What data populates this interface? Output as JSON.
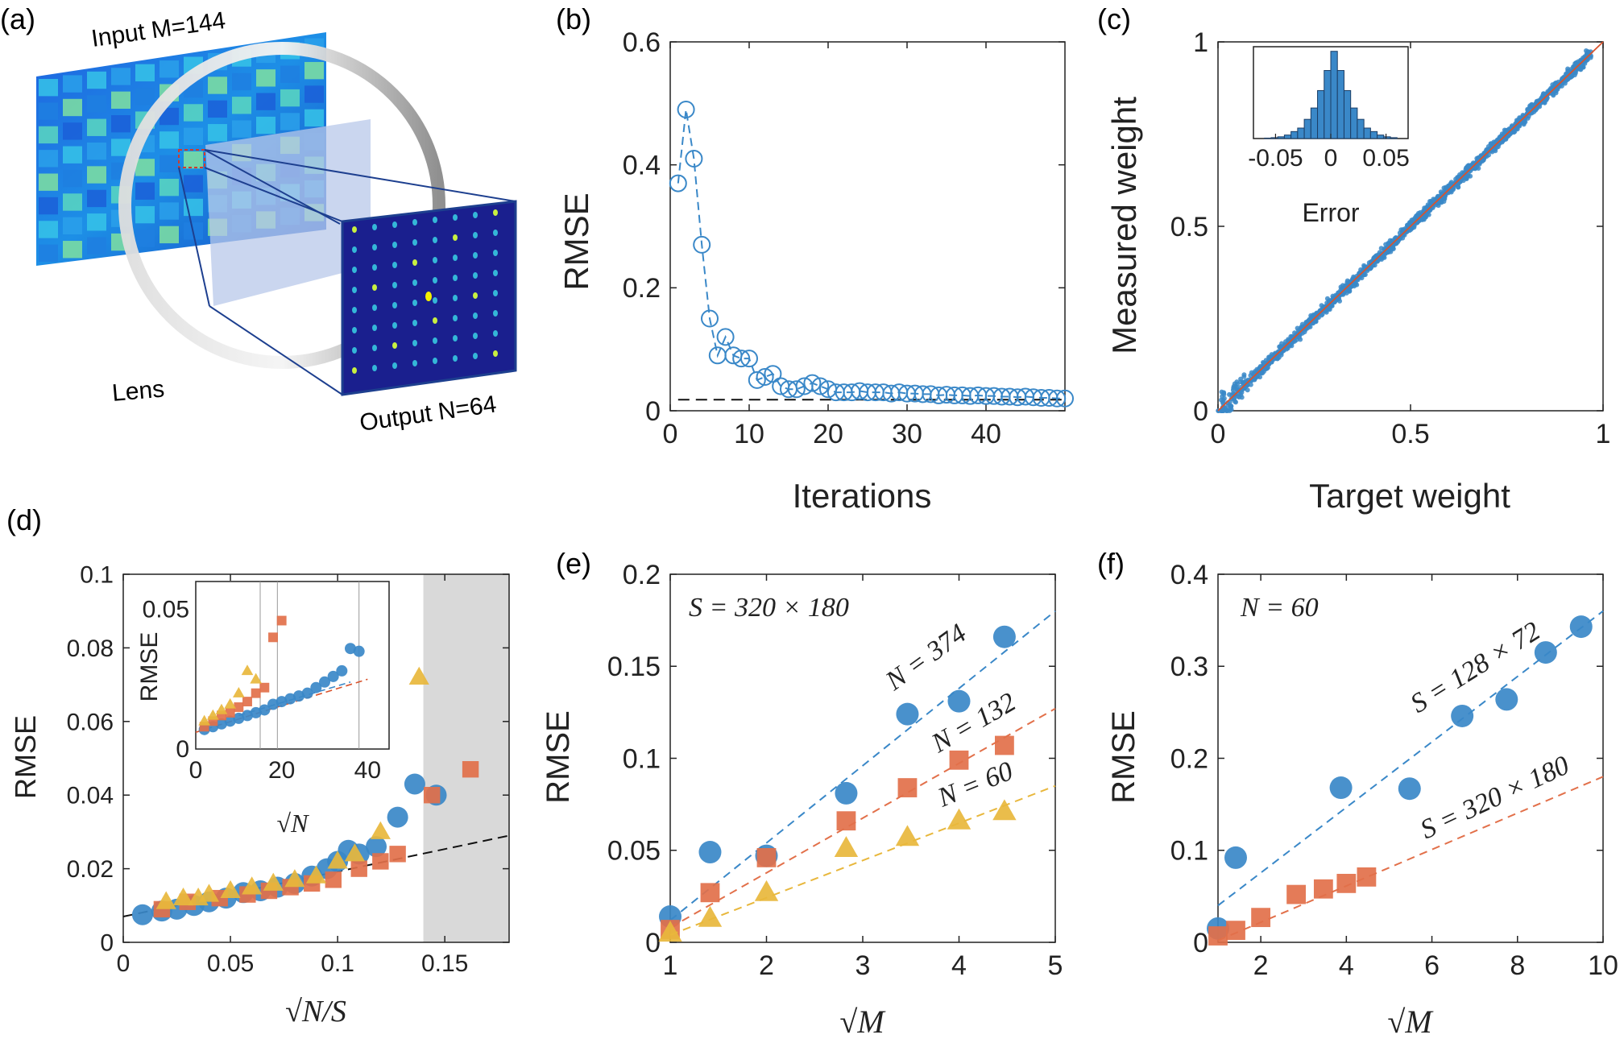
{
  "panel_letters": [
    "(a)",
    "(b)",
    "(c)",
    "(d)",
    "(e)",
    "(f)"
  ],
  "colors": {
    "blue": "#3a88c8",
    "orange": "#e2704a",
    "yellow": "#e8b73c",
    "red_fit": "#d9532c",
    "black": "#111111",
    "grey_band": "#d9d9d9"
  },
  "panel_a": {
    "input_label": "Input M=144",
    "output_label": "Output N=64",
    "lens_label": "Lens"
  },
  "chart_data": [
    {
      "panel": "(b)",
      "type": "scatter",
      "xlabel": "Iterations",
      "ylabel": "RMSE",
      "xlim": [
        0,
        50
      ],
      "ylim": [
        0,
        0.6
      ],
      "xticks": [
        "0",
        "10",
        "20",
        "30",
        "40"
      ],
      "yticks": [
        "0",
        "0.2",
        "0.4",
        "0.6"
      ],
      "baseline": 0.018,
      "series": [
        {
          "marker": "circle-open",
          "line": "dashed",
          "x": [
            1,
            2,
            3,
            4,
            5,
            6,
            7,
            8,
            9,
            10,
            11,
            12,
            13,
            14,
            15,
            16,
            17,
            18,
            19,
            20,
            21,
            22,
            23,
            24,
            25,
            26,
            27,
            28,
            29,
            30,
            31,
            32,
            33,
            34,
            35,
            36,
            37,
            38,
            39,
            40,
            41,
            42,
            43,
            44,
            45,
            46,
            47,
            48,
            49,
            50
          ],
          "y": [
            0.37,
            0.49,
            0.41,
            0.27,
            0.15,
            0.09,
            0.12,
            0.09,
            0.085,
            0.085,
            0.05,
            0.055,
            0.06,
            0.04,
            0.035,
            0.035,
            0.04,
            0.045,
            0.04,
            0.035,
            0.03,
            0.03,
            0.03,
            0.032,
            0.03,
            0.03,
            0.03,
            0.028,
            0.03,
            0.028,
            0.028,
            0.027,
            0.027,
            0.025,
            0.026,
            0.025,
            0.025,
            0.024,
            0.025,
            0.024,
            0.024,
            0.023,
            0.023,
            0.022,
            0.023,
            0.022,
            0.021,
            0.021,
            0.02,
            0.02
          ]
        }
      ]
    },
    {
      "panel": "(c)",
      "type": "scatter",
      "xlabel": "Target weight",
      "ylabel": "Measured weight",
      "xlim": [
        0,
        1
      ],
      "ylim": [
        0,
        1
      ],
      "xticks": [
        "0",
        "0.5",
        "1"
      ],
      "yticks": [
        "0",
        "0.5",
        "1"
      ],
      "description_points": "dense cloud along y = x",
      "inset": {
        "type": "bar",
        "xlabel": "Error",
        "xticks": [
          "-0.05",
          "0",
          "0.05"
        ],
        "bins": [
          -0.06,
          -0.054,
          -0.048,
          -0.042,
          -0.036,
          -0.03,
          -0.024,
          -0.018,
          -0.012,
          -0.006,
          0,
          0.006,
          0.012,
          0.018,
          0.024,
          0.03,
          0.036,
          0.042,
          0.048,
          0.054,
          0.06
        ],
        "values": [
          0.005,
          0.01,
          0.02,
          0.04,
          0.08,
          0.12,
          0.22,
          0.35,
          0.55,
          0.78,
          1.0,
          0.78,
          0.55,
          0.35,
          0.22,
          0.12,
          0.08,
          0.04,
          0.02,
          0.01
        ]
      }
    },
    {
      "panel": "(d)",
      "type": "scatter",
      "xlabel": "√N/S",
      "ylabel": "RMSE",
      "xlim": [
        0,
        0.18
      ],
      "ylim": [
        0,
        0.1
      ],
      "xticks": [
        "0",
        "0.05",
        "0.1",
        "0.15"
      ],
      "yticks": [
        "0",
        "0.02",
        "0.04",
        "0.06",
        "0.08",
        "0.1"
      ],
      "shaded_region": [
        0.14,
        0.18
      ],
      "fit_line": {
        "x": [
          0,
          0.18
        ],
        "y": [
          0.007,
          0.029
        ]
      },
      "series": [
        {
          "marker": "circle",
          "color": "blue",
          "x": [
            0.009,
            0.018,
            0.025,
            0.033,
            0.04,
            0.048,
            0.056,
            0.064,
            0.072,
            0.08,
            0.088,
            0.095,
            0.1,
            0.105,
            0.11,
            0.118,
            0.128,
            0.136,
            0.146
          ],
          "y": [
            0.0075,
            0.0085,
            0.009,
            0.01,
            0.011,
            0.012,
            0.0135,
            0.014,
            0.015,
            0.016,
            0.018,
            0.02,
            0.022,
            0.025,
            0.024,
            0.026,
            0.034,
            0.043,
            0.04
          ]
        },
        {
          "marker": "square",
          "color": "orange",
          "x": [
            0.018,
            0.03,
            0.045,
            0.058,
            0.068,
            0.078,
            0.088,
            0.098,
            0.11,
            0.12,
            0.128,
            0.144,
            0.162
          ],
          "y": [
            0.009,
            0.011,
            0.012,
            0.013,
            0.014,
            0.015,
            0.016,
            0.017,
            0.02,
            0.022,
            0.024,
            0.04,
            0.047
          ]
        },
        {
          "marker": "triangle",
          "color": "yellow",
          "x": [
            0.02,
            0.028,
            0.035,
            0.04,
            0.05,
            0.06,
            0.07,
            0.08,
            0.09,
            0.1,
            0.108,
            0.12,
            0.138
          ],
          "y": [
            0.011,
            0.012,
            0.012,
            0.013,
            0.014,
            0.015,
            0.016,
            0.017,
            0.018,
            0.022,
            0.024,
            0.03,
            0.072
          ]
        }
      ],
      "inset": {
        "xlabel": "√N",
        "ylabel": "RMSE",
        "xlim": [
          0,
          45
        ],
        "ylim": [
          0,
          0.06
        ],
        "xticks": [
          "0",
          "20",
          "40"
        ],
        "yticks": [
          "0",
          "0.05"
        ],
        "vlines": [
          15,
          19,
          38
        ],
        "fit_line": {
          "x": [
            0,
            40
          ],
          "y": [
            0.006,
            0.025
          ]
        },
        "series": [
          {
            "marker": "circle",
            "color": "blue",
            "x": [
              2,
              4,
              6,
              8,
              10,
              12,
              14,
              16,
              18,
              20,
              22,
              24,
              26,
              28,
              30,
              32,
              34,
              36,
              38
            ],
            "y": [
              0.007,
              0.008,
              0.009,
              0.01,
              0.011,
              0.012,
              0.013,
              0.014,
              0.016,
              0.017,
              0.018,
              0.019,
              0.02,
              0.022,
              0.024,
              0.026,
              0.028,
              0.036,
              0.035
            ]
          },
          {
            "marker": "square",
            "color": "orange",
            "x": [
              2,
              4,
              6,
              8,
              10,
              12,
              14,
              16,
              18,
              20
            ],
            "y": [
              0.008,
              0.01,
              0.012,
              0.013,
              0.015,
              0.017,
              0.02,
              0.022,
              0.04,
              0.046
            ]
          },
          {
            "marker": "triangle",
            "color": "yellow",
            "x": [
              2,
              4,
              6,
              8,
              10,
              12,
              14
            ],
            "y": [
              0.01,
              0.012,
              0.014,
              0.016,
              0.02,
              0.028,
              0.025
            ]
          }
        ]
      }
    },
    {
      "panel": "(e)",
      "type": "scatter",
      "xlabel": "√M",
      "ylabel": "RMSE",
      "xlim": [
        1,
        5
      ],
      "ylim": [
        0,
        0.2
      ],
      "xticks": [
        "1",
        "2",
        "3",
        "4",
        "5"
      ],
      "yticks": [
        "0",
        "0.05",
        "0.1",
        "0.15",
        "0.2"
      ],
      "annotation": "S = 320 × 180",
      "series": [
        {
          "name": "N = 374",
          "marker": "circle",
          "color": "blue",
          "x": [
            1,
            1.414,
            2,
            2.828,
            3.464,
            4,
            4.472
          ],
          "y": [
            0.014,
            0.049,
            0.047,
            0.081,
            0.124,
            0.131,
            0.166
          ],
          "fit": [
            1,
            0.012,
            5,
            0.18
          ]
        },
        {
          "name": "N = 132",
          "marker": "square",
          "color": "orange",
          "x": [
            1,
            1.414,
            2,
            2.828,
            3.464,
            4,
            4.472
          ],
          "y": [
            0.007,
            0.027,
            0.046,
            0.066,
            0.084,
            0.099,
            0.107
          ],
          "fit": [
            1,
            0.008,
            5,
            0.127
          ]
        },
        {
          "name": "N = 60",
          "marker": "triangle",
          "color": "yellow",
          "x": [
            1,
            1.414,
            2,
            2.828,
            3.464,
            4,
            4.472
          ],
          "y": [
            0.005,
            0.013,
            0.027,
            0.051,
            0.057,
            0.066,
            0.071
          ],
          "fit": [
            1,
            0.004,
            5,
            0.085
          ]
        }
      ]
    },
    {
      "panel": "(f)",
      "type": "scatter",
      "xlabel": "√M",
      "ylabel": "RMSE",
      "xlim": [
        1,
        10
      ],
      "ylim": [
        0,
        0.4
      ],
      "xticks": [
        "2",
        "4",
        "6",
        "8",
        "10"
      ],
      "yticks": [
        "0",
        "0.1",
        "0.2",
        "0.3",
        "0.4"
      ],
      "annotation": "N = 60",
      "series": [
        {
          "name": "S = 128 × 72",
          "marker": "circle",
          "color": "blue",
          "x": [
            1,
            1.414,
            3.873,
            5.477,
            6.708,
            7.746,
            8.66,
            9.487
          ],
          "y": [
            0.015,
            0.092,
            0.168,
            0.167,
            0.246,
            0.264,
            0.315,
            0.343
          ],
          "fit": [
            1,
            0.04,
            10,
            0.36
          ]
        },
        {
          "name": "S = 320 × 180",
          "marker": "square",
          "color": "orange",
          "x": [
            1,
            1.414,
            2,
            2.828,
            3.464,
            4,
            4.472
          ],
          "y": [
            0.007,
            0.013,
            0.027,
            0.052,
            0.058,
            0.064,
            0.071
          ],
          "fit": [
            1,
            0.002,
            10,
            0.18
          ]
        }
      ]
    }
  ]
}
